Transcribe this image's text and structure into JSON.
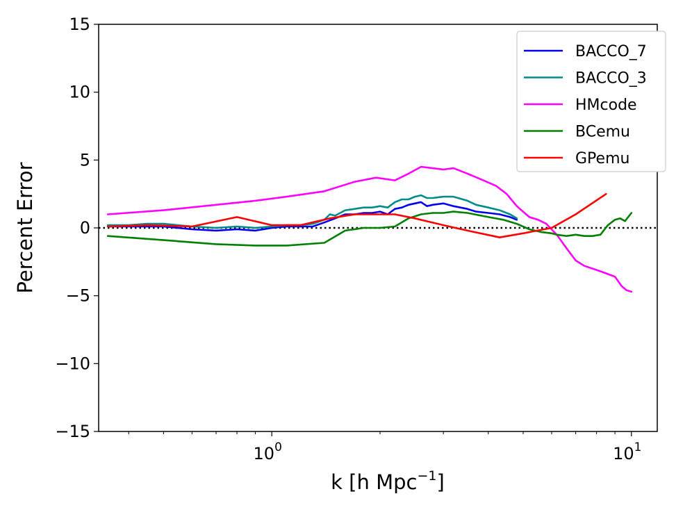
{
  "chart_data": {
    "type": "line",
    "xscale": "log",
    "xlim": [
      0.33,
      11.8
    ],
    "ylim": [
      -15,
      15
    ],
    "xlabel": "k [h Mpc",
    "xlabel_sup": "−1",
    "xlabel_close": "]",
    "ylabel": "Percent Error",
    "x_ticks": [
      {
        "value": 1,
        "base": "10",
        "exp": "0"
      },
      {
        "value": 10,
        "base": "10",
        "exp": "1"
      }
    ],
    "y_ticks": [
      {
        "value": 15,
        "label": "15"
      },
      {
        "value": 10,
        "label": "10"
      },
      {
        "value": 5,
        "label": "5"
      },
      {
        "value": 0,
        "label": "0"
      },
      {
        "value": -5,
        "label": "−5"
      },
      {
        "value": -10,
        "label": "−10"
      },
      {
        "value": -15,
        "label": "−15"
      }
    ],
    "reference_line": {
      "y": 0,
      "style": "dotted",
      "color": "#000000"
    },
    "legend_position": "top-right",
    "series": [
      {
        "name": "BACCO_7",
        "color": "#0000ee",
        "x": [
          0.35,
          0.4,
          0.45,
          0.5,
          0.6,
          0.7,
          0.8,
          0.9,
          1.0,
          1.1,
          1.2,
          1.3,
          1.4,
          1.5,
          1.6,
          1.7,
          1.8,
          1.9,
          2.0,
          2.1,
          2.2,
          2.3,
          2.4,
          2.5,
          2.6,
          2.7,
          2.8,
          3.0,
          3.2,
          3.5,
          3.7,
          4.0,
          4.3,
          4.6,
          4.8
        ],
        "y": [
          0.1,
          0.1,
          0.1,
          0.1,
          -0.1,
          -0.2,
          -0.1,
          -0.2,
          0.0,
          0.1,
          0.1,
          0.1,
          0.4,
          0.7,
          1.0,
          1.0,
          1.1,
          1.1,
          1.2,
          1.0,
          1.4,
          1.5,
          1.7,
          1.8,
          1.9,
          1.6,
          1.7,
          1.8,
          1.6,
          1.4,
          1.2,
          1.1,
          1.0,
          0.8,
          0.6
        ]
      },
      {
        "name": "BACCO_3",
        "color": "#008b8b",
        "x": [
          0.35,
          0.4,
          0.45,
          0.5,
          0.6,
          0.7,
          0.8,
          0.9,
          1.0,
          1.1,
          1.2,
          1.3,
          1.4,
          1.45,
          1.5,
          1.6,
          1.7,
          1.8,
          1.9,
          2.0,
          2.1,
          2.2,
          2.3,
          2.4,
          2.5,
          2.6,
          2.7,
          2.8,
          3.0,
          3.2,
          3.5,
          3.7,
          4.0,
          4.3,
          4.6,
          4.8
        ],
        "y": [
          0.2,
          0.2,
          0.3,
          0.3,
          0.1,
          0.0,
          0.1,
          0.0,
          0.1,
          0.2,
          0.2,
          0.3,
          0.6,
          1.0,
          0.9,
          1.3,
          1.4,
          1.5,
          1.5,
          1.6,
          1.5,
          1.9,
          2.1,
          2.1,
          2.3,
          2.4,
          2.2,
          2.2,
          2.3,
          2.3,
          2.0,
          1.7,
          1.5,
          1.3,
          1.0,
          0.7
        ]
      },
      {
        "name": "HMcode",
        "color": "#ff00ff",
        "x": [
          0.35,
          0.5,
          0.7,
          0.9,
          1.1,
          1.4,
          1.7,
          1.95,
          2.2,
          2.4,
          2.6,
          2.8,
          3.0,
          3.2,
          3.5,
          3.8,
          4.2,
          4.5,
          4.8,
          5.2,
          5.5,
          5.8,
          6.2,
          6.6,
          7.0,
          7.4,
          7.8,
          8.2,
          8.6,
          9.0,
          9.4,
          9.7,
          10.0
        ],
        "y": [
          1.0,
          1.3,
          1.7,
          2.0,
          2.3,
          2.7,
          3.4,
          3.7,
          3.5,
          4.0,
          4.5,
          4.4,
          4.3,
          4.4,
          4.0,
          3.6,
          3.1,
          2.5,
          1.6,
          0.8,
          0.6,
          0.3,
          -0.5,
          -1.5,
          -2.4,
          -2.8,
          -3.0,
          -3.2,
          -3.4,
          -3.6,
          -4.3,
          -4.6,
          -4.7
        ]
      },
      {
        "name": "BCemu",
        "color": "#008000",
        "x": [
          0.35,
          0.5,
          0.7,
          0.9,
          1.1,
          1.4,
          1.6,
          1.8,
          2.0,
          2.2,
          2.4,
          2.6,
          2.8,
          3.0,
          3.2,
          3.5,
          4.0,
          4.4,
          4.8,
          5.2,
          5.6,
          6.0,
          6.2,
          6.6,
          7.0,
          7.4,
          7.8,
          8.2,
          8.6,
          9.0,
          9.3,
          9.6,
          10.0
        ],
        "y": [
          -0.6,
          -0.9,
          -1.2,
          -1.3,
          -1.3,
          -1.1,
          -0.2,
          0.0,
          0.0,
          0.1,
          0.7,
          1.0,
          1.1,
          1.1,
          1.2,
          1.1,
          0.8,
          0.6,
          0.3,
          -0.1,
          -0.3,
          -0.4,
          -0.5,
          -0.6,
          -0.5,
          -0.6,
          -0.6,
          -0.5,
          0.2,
          0.6,
          0.7,
          0.5,
          1.1
        ]
      },
      {
        "name": "GPemu",
        "color": "#ff0000",
        "x": [
          0.35,
          0.45,
          0.6,
          0.8,
          1.0,
          1.2,
          1.45,
          1.7,
          2.0,
          2.2,
          2.5,
          3.0,
          3.5,
          4.3,
          5.0,
          6.0,
          7.0,
          8.5
        ],
        "y": [
          0.1,
          0.2,
          0.1,
          0.8,
          0.2,
          0.2,
          0.7,
          1.0,
          1.0,
          1.0,
          0.7,
          0.2,
          -0.2,
          -0.7,
          -0.4,
          0.0,
          1.0,
          2.5
        ]
      }
    ]
  }
}
